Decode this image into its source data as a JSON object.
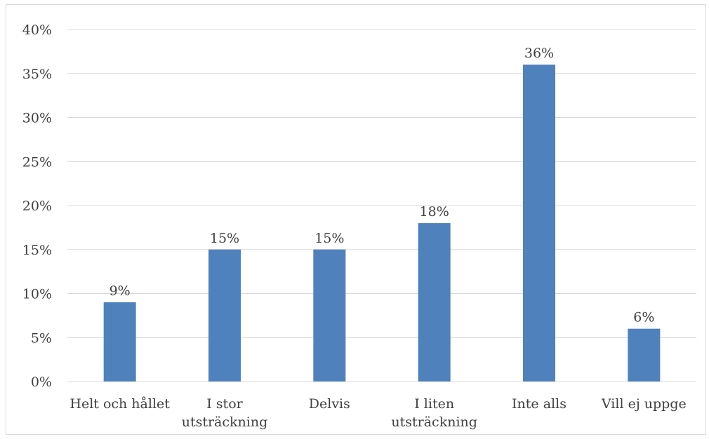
{
  "chart_data": {
    "type": "bar",
    "categories": [
      [
        "Helt och hållet"
      ],
      [
        "I stor",
        "utsträckning"
      ],
      [
        "Delvis"
      ],
      [
        "I liten",
        "utsträckning"
      ],
      [
        "Inte alls"
      ],
      [
        "Vill ej uppge"
      ]
    ],
    "values": [
      9,
      15,
      15,
      18,
      36,
      6
    ],
    "data_labels": [
      "9%",
      "15%",
      "15%",
      "18%",
      "36%",
      "6%"
    ],
    "title": "",
    "xlabel": "",
    "ylabel": "",
    "ylim": [
      0,
      40
    ],
    "yticks": [
      0,
      5,
      10,
      15,
      20,
      25,
      30,
      35,
      40
    ],
    "ytick_labels": [
      "0%",
      "5%",
      "10%",
      "15%",
      "20%",
      "25%",
      "30%",
      "35%",
      "40%"
    ],
    "grid": true,
    "legend": "none",
    "colors": {
      "bar": "#4f81bd",
      "grid": "#d9d9d9",
      "text": "#404040"
    }
  }
}
